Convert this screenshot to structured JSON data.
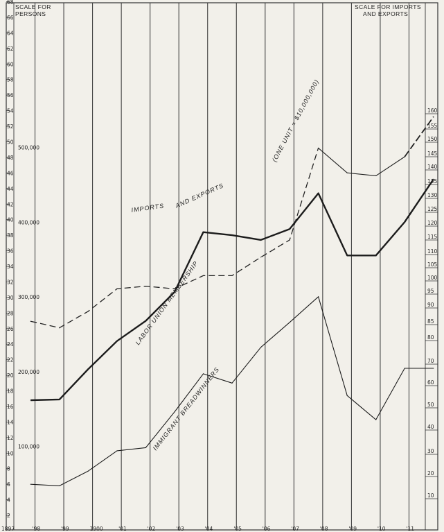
{
  "headings": {
    "left": [
      "SCALE FOR",
      "PERSONS"
    ],
    "right": [
      "SCALE FOR IMPORTS",
      "AND EXPORTS"
    ]
  },
  "chart_data": {
    "type": "line",
    "x_tick_labels": [
      "1897",
      "'98",
      "'99",
      "1900",
      "'01",
      "'02",
      "'03",
      "'04",
      "'05",
      "'06",
      "'07",
      "'08",
      "'09",
      "'10",
      "'11"
    ],
    "left_axis": {
      "units": [
        2,
        4,
        6,
        8,
        10,
        12,
        14,
        16,
        18,
        20,
        22,
        24,
        26,
        28,
        30,
        32,
        34,
        36,
        38,
        40,
        42,
        44,
        46,
        48,
        50,
        52,
        54,
        56,
        58,
        60,
        62,
        64,
        66,
        68
      ],
      "persons": [
        {
          "value": 100000,
          "label": "100,000"
        },
        {
          "value": 200000,
          "label": "200,000"
        },
        {
          "value": 300000,
          "label": "300,000"
        },
        {
          "value": 400000,
          "label": "400,000"
        },
        {
          "value": 500000,
          "label": "500,000"
        }
      ],
      "range": [
        0,
        68
      ]
    },
    "right_axis": {
      "ticks": [
        10,
        20,
        30,
        40,
        50,
        60,
        70,
        80,
        85,
        90,
        95,
        100,
        105,
        110,
        115,
        120,
        125,
        130,
        135,
        140,
        145,
        150,
        155,
        160
      ],
      "labels": [
        "10",
        "20",
        "30",
        "40",
        "50",
        "60",
        "70",
        "80",
        "85",
        "90",
        "95",
        "100",
        "105",
        "110",
        "115",
        "120",
        "125",
        "130",
        "135",
        "140",
        "145",
        "150",
        "155",
        "160"
      ]
    },
    "series": [
      {
        "name": "IMPORTS AND EXPORTS",
        "style": "dashed-then-solid",
        "axis": "right",
        "x": [
          1897,
          1898,
          1899,
          1900,
          1901,
          1902,
          1903,
          1904,
          1905,
          1906,
          1907,
          1908,
          1909,
          1910,
          1911
        ],
        "values": [
          86,
          84,
          89,
          97,
          98,
          97,
          102,
          102,
          109,
          115,
          148,
          139,
          138,
          145,
          159
        ]
      },
      {
        "name": "LABOR UNION MEMBERSHIP",
        "style": "bold",
        "axis": "left",
        "x": [
          1897,
          1898,
          1899,
          1900,
          1901,
          1902,
          1903,
          1904,
          1905,
          1906,
          1907,
          1908,
          1909,
          1910,
          1911
        ],
        "values": [
          16.8,
          16.9,
          20.8,
          24.4,
          27.0,
          30.7,
          38.4,
          38.0,
          37.4,
          38.8,
          43.4,
          35.4,
          35.4,
          39.7,
          45.2
        ]
      },
      {
        "name": "IMMIGRANT BREADWINNERS",
        "style": "thin",
        "axis": "left",
        "x": [
          1897,
          1898,
          1899,
          1900,
          1901,
          1902,
          1903,
          1904,
          1905,
          1906,
          1907,
          1908,
          1909,
          1910,
          1911
        ],
        "values": [
          6.0,
          5.8,
          7.7,
          10.3,
          10.7,
          15.3,
          20.2,
          19.0,
          23.6,
          26.8,
          30.1,
          17.4,
          14.3,
          20.9,
          20.9
        ]
      }
    ],
    "annotations": [
      "IMPORTS",
      "AND EXPORTS",
      "(ONE UNIT = $10,000,000)",
      "LABOR UNION MEMBERSHIP",
      "IMMIGRANT BREADWINNERS"
    ],
    "grid": true
  }
}
